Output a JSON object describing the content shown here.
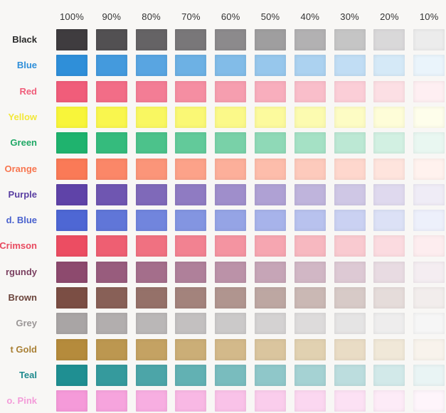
{
  "tint_levels": [
    {
      "label": "100%",
      "value": 1.0
    },
    {
      "label": "90%",
      "value": 0.9
    },
    {
      "label": "80%",
      "value": 0.8
    },
    {
      "label": "70%",
      "value": 0.7
    },
    {
      "label": "60%",
      "value": 0.6
    },
    {
      "label": "50%",
      "value": 0.5
    },
    {
      "label": "40%",
      "value": 0.4
    },
    {
      "label": "30%",
      "value": 0.3
    },
    {
      "label": "20%",
      "value": 0.2
    },
    {
      "label": "10%",
      "value": 0.1
    }
  ],
  "colors": [
    {
      "name": "Black",
      "hex": "#3f3c3f",
      "label_color": "#2a2a2a"
    },
    {
      "name": "Blue",
      "hex": "#2f8fd9",
      "label_color": "#2f8fd9"
    },
    {
      "name": "Red",
      "hex": "#f05d7a",
      "label_color": "#f05d7a"
    },
    {
      "name": "Yellow",
      "hex": "#f8f53a",
      "label_color": "#f2e83a"
    },
    {
      "name": "Green",
      "hex": "#1fb36e",
      "label_color": "#1fa865"
    },
    {
      "name": "Orange",
      "hex": "#fa7a57",
      "label_color": "#f8764f"
    },
    {
      "name": "Purple",
      "hex": "#5f43a8",
      "label_color": "#5a3fa2"
    },
    {
      "name": "d. Blue",
      "hex": "#4e67d4",
      "label_color": "#4a62ce"
    },
    {
      "name": "Crimson",
      "hex": "#ec4d62",
      "label_color": "#e84a5f"
    },
    {
      "name": "rgundy",
      "hex": "#8d4a6e",
      "label_color": "#7a3f5f"
    },
    {
      "name": "Brown",
      "hex": "#7b4e44",
      "label_color": "#6b443b"
    },
    {
      "name": "Grey",
      "hex": "#a9a5a5",
      "label_color": "#9a9696"
    },
    {
      "name": "t Gold",
      "hex": "#b58b3c",
      "label_color": "#a98035"
    },
    {
      "name": "Teal",
      "hex": "#1f8f92",
      "label_color": "#1f8a8e"
    },
    {
      "name": "o. Pink",
      "hex": "#f59ad9",
      "label_color": "#f39bd9"
    }
  ]
}
